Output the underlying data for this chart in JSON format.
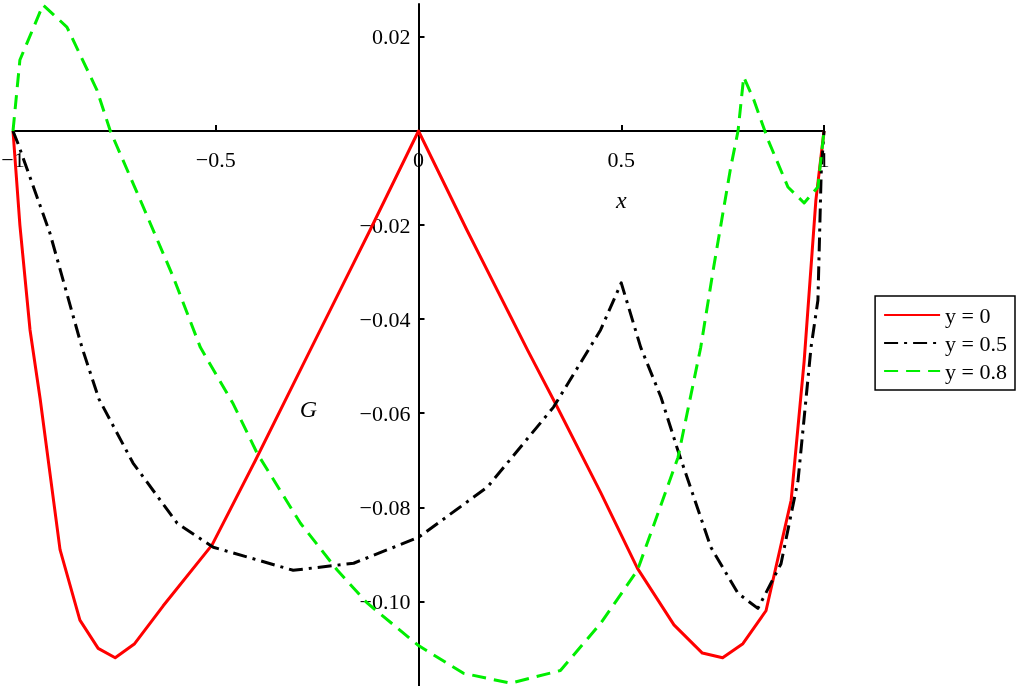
{
  "chart_data": {
    "type": "line",
    "xlabel": "x",
    "ylabel": "G",
    "xlim": [
      -1,
      1
    ],
    "ylim": [
      -0.118,
      0.027
    ],
    "xticks": [
      {
        "value": -1,
        "label": "−1"
      },
      {
        "value": -0.5,
        "label": "−0.5"
      },
      0,
      0.5,
      1
    ],
    "yticks": [
      0.02,
      {
        "value": -0.02,
        "label": "−0.02"
      },
      {
        "value": -0.04,
        "label": "−0.04"
      },
      {
        "value": -0.06,
        "label": "−0.06"
      },
      {
        "value": -0.08,
        "label": "−0.08"
      },
      {
        "value": -0.1,
        "label": "−0.10"
      }
    ],
    "grid": false,
    "legend": "right",
    "marker": "none",
    "series": [
      {
        "name": "y = 0",
        "color": "#ff0000",
        "line_style": "solid",
        "x": [
          -1,
          -0.983,
          -0.958,
          -0.933,
          -0.884,
          -0.835,
          -0.79,
          -0.748,
          -0.7,
          -0.63,
          -0.509,
          -0.402,
          -0.267,
          -0.119,
          0,
          0.119,
          0.269,
          0.338,
          0.45,
          0.54,
          0.63,
          0.7,
          0.75,
          0.8,
          0.857,
          0.919,
          0.951,
          0.98,
          1
        ],
        "values": [
          0,
          -0.02,
          -0.0423,
          -0.057,
          -0.089,
          -0.104,
          -0.11,
          -0.112,
          -0.109,
          -0.101,
          -0.088,
          -0.07,
          -0.0466,
          -0.021,
          0,
          -0.021,
          -0.0466,
          -0.058,
          -0.077,
          -0.093,
          -0.105,
          -0.111,
          -0.112,
          -0.109,
          -0.102,
          -0.0785,
          -0.049,
          -0.0147,
          0
        ]
      },
      {
        "name": "y = 0.5",
        "color": "#000000",
        "line_style": "dashdot",
        "x": [
          -1,
          -0.988,
          -0.909,
          -0.83,
          -0.788,
          -0.704,
          -0.595,
          -0.506,
          -0.309,
          -0.16,
          0,
          0.17,
          0.333,
          0.449,
          0.5,
          0.548,
          0.598,
          0.64,
          0.721,
          0.788,
          0.837,
          0.894,
          0.936,
          0.968,
          0.985,
          0.993,
          1
        ],
        "values": [
          0,
          -0.0026,
          -0.0217,
          -0.046,
          -0.057,
          -0.0706,
          -0.0834,
          -0.0885,
          -0.0934,
          -0.0919,
          -0.0864,
          -0.0757,
          -0.0587,
          -0.0423,
          -0.0323,
          -0.046,
          -0.0566,
          -0.068,
          -0.0885,
          -0.0983,
          -0.1015,
          -0.092,
          -0.0743,
          -0.046,
          -0.036,
          -0.009,
          0
        ]
      },
      {
        "name": "y = 0.8",
        "color": "#00ee00",
        "line_style": "dashed",
        "x": [
          -1,
          -0.983,
          -0.926,
          -0.867,
          -0.793,
          -0.76,
          -0.686,
          -0.605,
          -0.538,
          -0.457,
          -0.398,
          -0.291,
          -0.2,
          -0.126,
          0,
          0.111,
          0.227,
          0.35,
          0.449,
          0.54,
          0.64,
          0.696,
          0.728,
          0.77,
          0.788,
          0.802,
          0.827,
          0.862,
          0.911,
          0.951,
          0.985,
          1
        ],
        "values": [
          0,
          0.0151,
          0.0268,
          0.0221,
          0.0087,
          0,
          -0.0147,
          -0.031,
          -0.046,
          -0.058,
          -0.0685,
          -0.0834,
          -0.0934,
          -0.1004,
          -0.1094,
          -0.1153,
          -0.1174,
          -0.1147,
          -0.1047,
          -0.0934,
          -0.0694,
          -0.046,
          -0.0289,
          -0.0077,
          0,
          0.0115,
          0.0066,
          -0.0019,
          -0.0119,
          -0.0153,
          -0.0119,
          0
        ]
      }
    ]
  }
}
